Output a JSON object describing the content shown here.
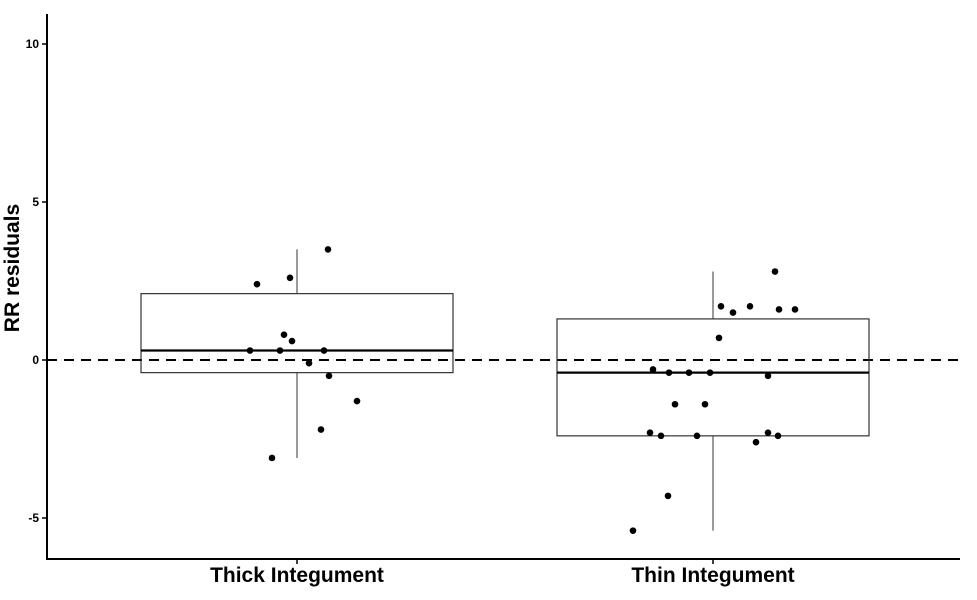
{
  "chart_data": {
    "type": "boxplot",
    "title": "",
    "xlabel": "",
    "ylabel": "RR residuals",
    "ylim": [
      -6.2,
      10.8
    ],
    "yticks": [
      -5,
      0,
      5,
      10
    ],
    "ytick_labels": [
      "-5",
      "0",
      "5",
      "10"
    ],
    "reference_line": {
      "y": 0,
      "style": "dashed"
    },
    "grid": false,
    "categories": [
      "Thick Integument",
      "Thin Integument"
    ],
    "boxes": [
      {
        "category": "Thick Integument",
        "whisker_low": -3.1,
        "q1": -0.4,
        "median": 0.3,
        "q3": 2.1,
        "whisker_high": 3.5
      },
      {
        "category": "Thin Integument",
        "whisker_low": -5.4,
        "q1": -2.4,
        "median": -0.4,
        "q3": 1.3,
        "whisker_high": 2.8
      }
    ],
    "points": [
      {
        "category": "Thick Integument",
        "values": [
          3.5,
          2.6,
          2.4,
          0.8,
          0.6,
          0.3,
          0.3,
          0.3,
          -0.1,
          -0.5,
          -1.3,
          -2.2,
          -3.1
        ]
      },
      {
        "category": "Thin Integument",
        "values": [
          2.8,
          1.7,
          1.7,
          1.6,
          1.6,
          1.5,
          0.7,
          -0.3,
          -0.4,
          -0.4,
          -0.4,
          -0.5,
          -1.4,
          -1.4,
          -2.3,
          -2.3,
          -2.4,
          -2.4,
          -2.4,
          -2.6,
          -4.3,
          -5.4
        ]
      }
    ],
    "colors": {
      "box": "#333333",
      "median": "#000000",
      "points": "#000000",
      "axis": "#000000"
    }
  }
}
